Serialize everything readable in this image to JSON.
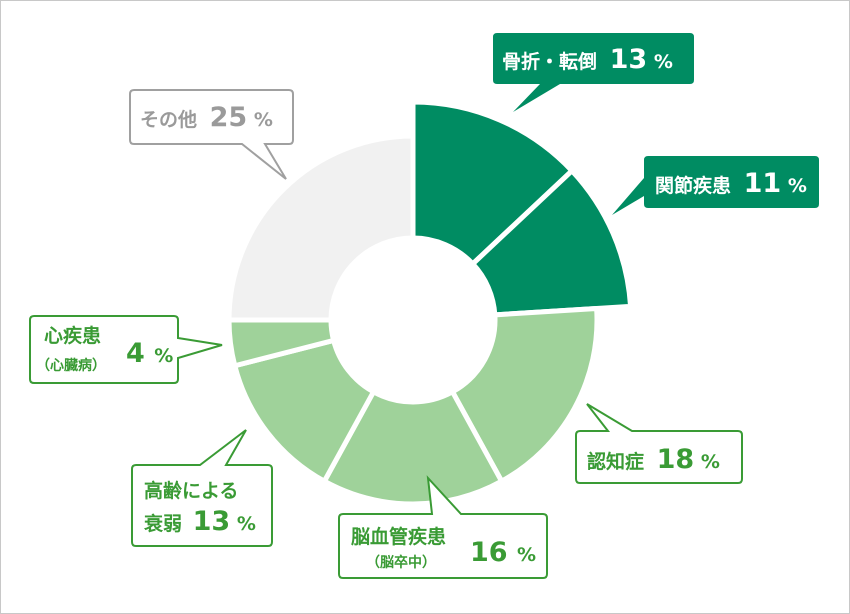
{
  "chart_data": {
    "type": "pie",
    "series": [
      {
        "label": "骨折・転倒",
        "sublabel": "",
        "value": 13,
        "color": "#008c62",
        "exploded": true
      },
      {
        "label": "関節疾患",
        "sublabel": "",
        "value": 11,
        "color": "#008c62",
        "exploded": true
      },
      {
        "label": "認知症",
        "sublabel": "",
        "value": 18,
        "color": "#9fd29a",
        "exploded": false
      },
      {
        "label": "脳血管疾患",
        "sublabel": "（脳卒中）",
        "value": 16,
        "color": "#9fd29a",
        "exploded": false
      },
      {
        "label": "高齢による衰弱",
        "sublabel": "",
        "value": 13,
        "color": "#9fd29a",
        "exploded": false
      },
      {
        "label": "心疾患",
        "sublabel": "（心臓病）",
        "value": 4,
        "color": "#9fd29a",
        "exploded": false
      },
      {
        "label": "その他",
        "sublabel": "",
        "value": 25,
        "color": "#f1f1f1",
        "exploded": false
      }
    ],
    "unit": "%",
    "donut": true,
    "start": "12 o'clock",
    "direction": "clockwise"
  },
  "labels": {
    "fracture": {
      "l1": "骨折・転倒",
      "pct": "13",
      "unit": "%"
    },
    "joint": {
      "l1": "関節疾患",
      "pct": "11",
      "unit": "%"
    },
    "dementia": {
      "l1": "認知症",
      "pct": "18",
      "unit": "%"
    },
    "stroke": {
      "l1": "脳血管疾患",
      "l2": "（脳卒中）",
      "pct": "16",
      "unit": "%"
    },
    "frailty": {
      "l1a": "高齢による",
      "l1b": "衰弱",
      "pct": "13",
      "unit": "%"
    },
    "heart": {
      "l1": "心疾患",
      "l2": "（心臓病）",
      "pct": "4",
      "unit": "%"
    },
    "other": {
      "l1": "その他",
      "pct": "25",
      "unit": "%"
    }
  },
  "colors": {
    "dark_green": "#008c62",
    "light_green": "#9fd29a",
    "gray": "#f1f1f1",
    "label_green": "#3a9b35",
    "label_gray": "#9a9a9a"
  }
}
